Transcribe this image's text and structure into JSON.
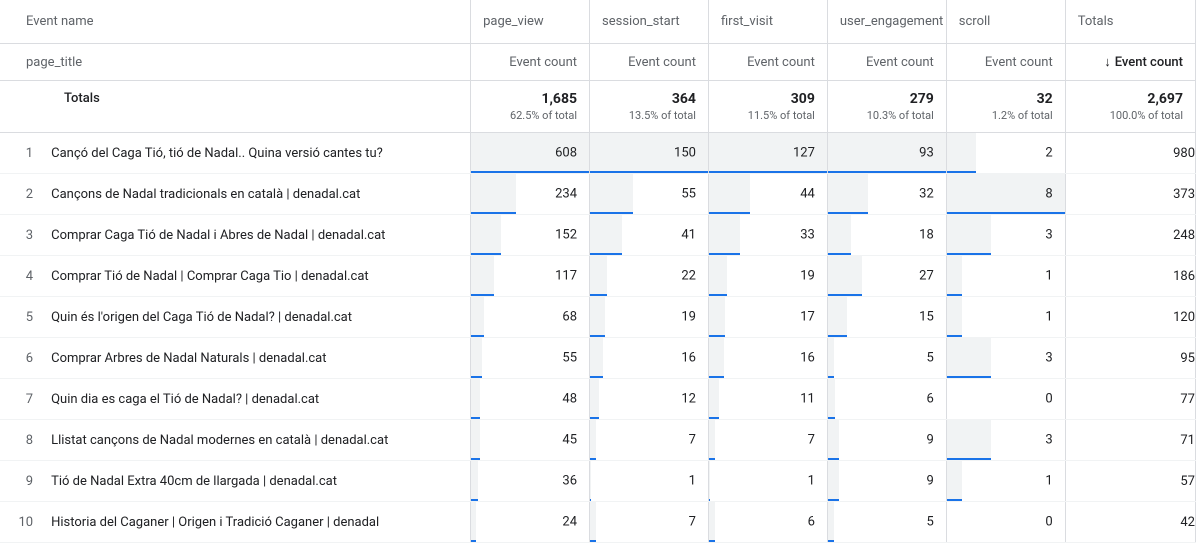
{
  "header": {
    "rowDimLabel": "Event name",
    "colDimLabel": "page_title",
    "metricLabel": "Event count",
    "sortedLabel": "Event count",
    "sortArrow": "↓",
    "columns": [
      "page_view",
      "session_start",
      "first_visit",
      "user_engagement",
      "scroll",
      "Totals"
    ]
  },
  "totals": {
    "label": "Totals",
    "values": [
      "1,685",
      "364",
      "309",
      "279",
      "32",
      "2,697"
    ],
    "subs": [
      "62.5% of total",
      "13.5% of total",
      "11.5% of total",
      "10.3% of total",
      "1.2% of total",
      "100.0% of total"
    ]
  },
  "columnMax": [
    608,
    150,
    127,
    93,
    8
  ],
  "barColors": {
    "fill": "#f1f3f4",
    "line": "#1a73e8"
  },
  "rows": [
    {
      "title": "Cançó del Caga Tió, tió de Nadal.. Quina versió cantes tu?",
      "vals": [
        608,
        150,
        127,
        93,
        2,
        980
      ]
    },
    {
      "title": "Cançons de Nadal tradicionals en català | denadal.cat",
      "vals": [
        234,
        55,
        44,
        32,
        8,
        373
      ]
    },
    {
      "title": "Comprar Caga Tió de Nadal i Abres de Nadal | denadal.cat",
      "vals": [
        152,
        41,
        33,
        18,
        3,
        248
      ]
    },
    {
      "title": "Comprar Tió de Nadal | Comprar Caga Tio | denadal.cat",
      "vals": [
        117,
        22,
        19,
        27,
        1,
        186
      ]
    },
    {
      "title": "Quin és l'origen del Caga Tió de Nadal? | denadal.cat",
      "vals": [
        68,
        19,
        17,
        15,
        1,
        120
      ]
    },
    {
      "title": "Comprar Arbres de Nadal Naturals | denadal.cat",
      "vals": [
        55,
        16,
        16,
        5,
        3,
        95
      ]
    },
    {
      "title": "Quin dia es caga el Tió de Nadal? | denadal.cat",
      "vals": [
        48,
        12,
        11,
        6,
        0,
        77
      ]
    },
    {
      "title": "Llistat cançons de Nadal modernes en català | denadal.cat",
      "vals": [
        45,
        7,
        7,
        9,
        3,
        71
      ]
    },
    {
      "title": "Tió de Nadal Extra 40cm de llargada | denadal.cat",
      "vals": [
        36,
        1,
        1,
        9,
        1,
        57
      ]
    },
    {
      "title": "Historia del Caganer | Origen i Tradició Caganer | denadal",
      "vals": [
        24,
        7,
        6,
        5,
        0,
        42
      ]
    }
  ]
}
